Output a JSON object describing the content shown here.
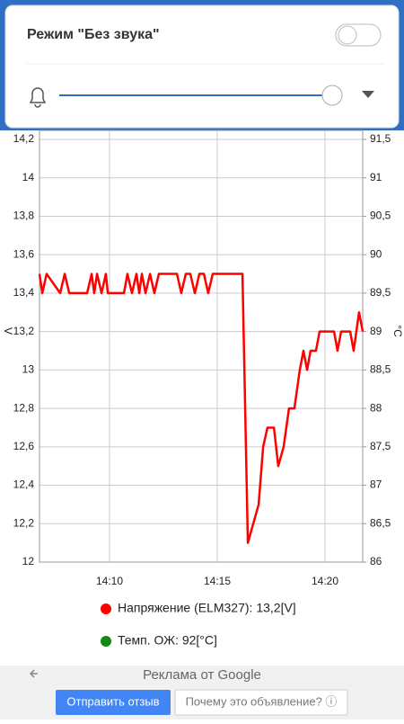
{
  "volume_panel": {
    "title": "Режим \"Без звука\""
  },
  "chart_data": {
    "type": "line",
    "x": [
      6.75,
      6.88,
      7.08,
      7.71,
      7.92,
      8.13,
      8.96,
      9.17,
      9.29,
      9.42,
      9.63,
      9.83,
      9.92,
      10.67,
      10.83,
      11.04,
      11.25,
      11.38,
      11.5,
      11.67,
      11.88,
      12.08,
      12.29,
      13.13,
      13.33,
      13.54,
      13.75,
      13.96,
      14.17,
      14.38,
      14.58,
      14.79,
      16.17,
      16.42,
      16.92,
      17.13,
      17.33,
      17.63,
      17.83,
      18.08,
      18.33,
      18.58,
      18.83,
      19.0,
      19.17,
      19.33,
      19.58,
      19.75,
      20.42,
      20.58,
      20.75,
      21.17,
      21.33,
      21.58,
      21.75
    ],
    "series": [
      {
        "name": "Напряжение (ELM327): 13,2[V]",
        "color": "#ff0000",
        "values": [
          13.5,
          13.4,
          13.5,
          13.4,
          13.5,
          13.4,
          13.4,
          13.5,
          13.4,
          13.5,
          13.4,
          13.5,
          13.4,
          13.4,
          13.5,
          13.4,
          13.5,
          13.4,
          13.5,
          13.4,
          13.5,
          13.4,
          13.5,
          13.5,
          13.4,
          13.5,
          13.5,
          13.4,
          13.5,
          13.5,
          13.4,
          13.5,
          13.5,
          12.1,
          12.3,
          12.6,
          12.7,
          12.7,
          12.5,
          12.6,
          12.8,
          12.8,
          13.0,
          13.1,
          13.0,
          13.1,
          13.1,
          13.2,
          13.2,
          13.1,
          13.2,
          13.2,
          13.1,
          13.3,
          13.2
        ]
      },
      {
        "name": "Темп. ОЖ: 92[°C]",
        "color": "#138a13",
        "axis": "y2"
      }
    ],
    "xlim": [
      6.75,
      21.75
    ],
    "xticks": [
      {
        "value": 10,
        "label": "14:10"
      },
      {
        "value": 15,
        "label": "14:15"
      },
      {
        "value": 20,
        "label": "14:20"
      }
    ],
    "ylim": [
      12,
      14.2
    ],
    "yticks": [
      12,
      {
        "value": 12.2,
        "label": "12,2"
      },
      {
        "value": 12.4,
        "label": "12,4"
      },
      {
        "value": 12.6,
        "label": "12,6"
      },
      {
        "value": 12.8,
        "label": "12,8"
      },
      13,
      {
        "value": 13.2,
        "label": "13,2"
      },
      {
        "value": 13.4,
        "label": "13,4"
      },
      {
        "value": 13.6,
        "label": "13,6"
      },
      {
        "value": 13.8,
        "label": "13,8"
      },
      14,
      {
        "value": 14.2,
        "label": "14,2"
      }
    ],
    "y2lim": [
      86,
      91.5
    ],
    "y2ticks": [
      86,
      {
        "value": 86.5,
        "label": "86,5"
      },
      87,
      {
        "value": 87.5,
        "label": "87,5"
      },
      88,
      {
        "value": 88.5,
        "label": "88,5"
      },
      89,
      {
        "value": 89.5,
        "label": "89,5"
      },
      90,
      {
        "value": 90.5,
        "label": "90,5"
      },
      91,
      {
        "value": 91.5,
        "label": "91,5"
      }
    ],
    "ylabel": "V",
    "y2label": "°C",
    "grid": true
  },
  "ad": {
    "title": "Реклама от Google",
    "feedback_button": "Отправить отзыв",
    "why_button": "Почему это объявление? ⓘ"
  }
}
